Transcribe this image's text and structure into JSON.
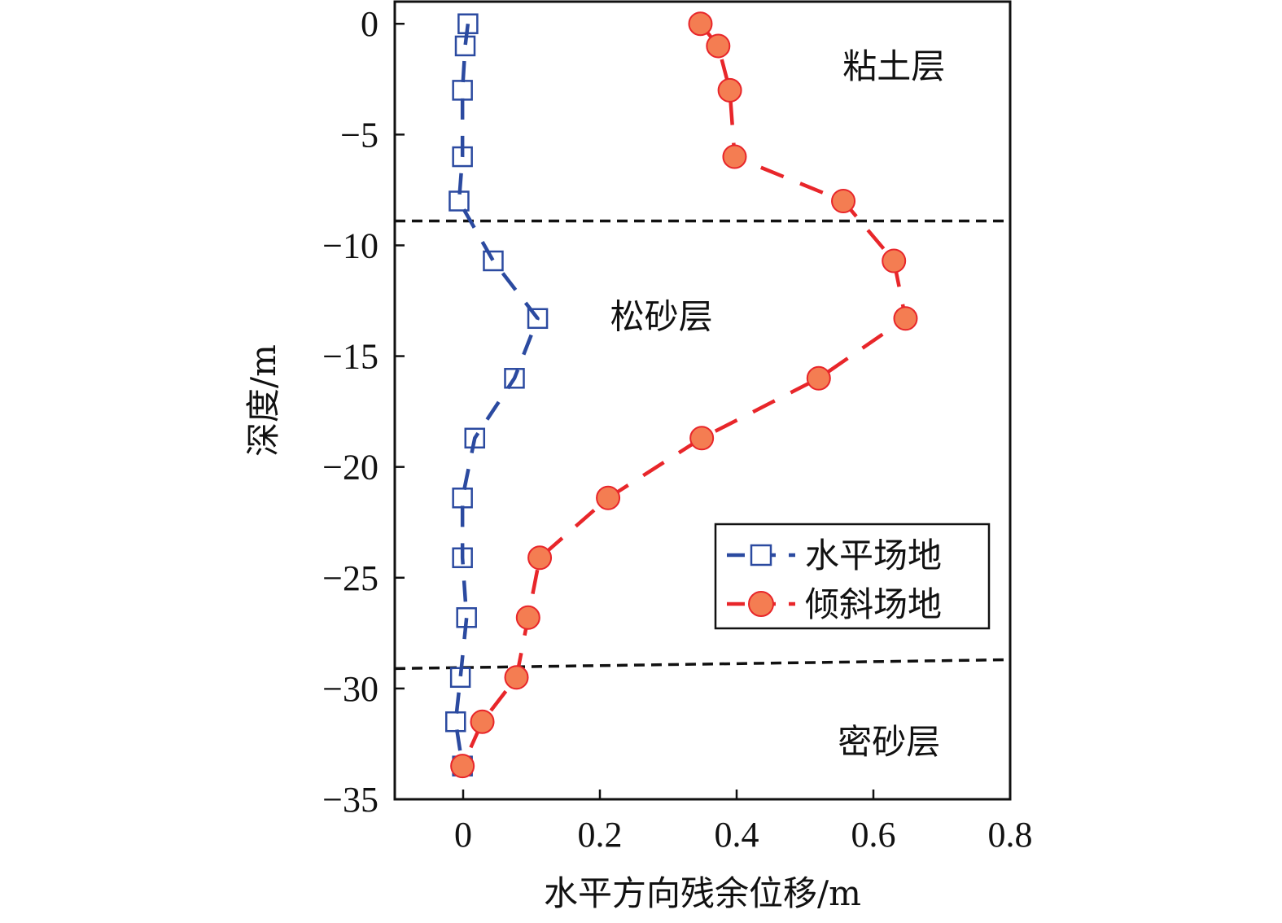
{
  "chart_data": {
    "type": "line",
    "xlabel": "水平方向残余位移/m",
    "ylabel": "深度/m",
    "xlim": [
      -0.1,
      0.8
    ],
    "ylim": [
      -35,
      1
    ],
    "x_ticks": [
      {
        "value": 0,
        "label": "0"
      },
      {
        "value": 0.2,
        "label": "0.2"
      },
      {
        "value": 0.4,
        "label": "0.4"
      },
      {
        "value": 0.6,
        "label": "0.6"
      },
      {
        "value": 0.8,
        "label": "0.8"
      }
    ],
    "y_ticks": [
      {
        "value": 0,
        "label": "0"
      },
      {
        "value": -5,
        "label": "−5"
      },
      {
        "value": -10,
        "label": "−10"
      },
      {
        "value": -15,
        "label": "−15"
      },
      {
        "value": -20,
        "label": "−20"
      },
      {
        "value": -25,
        "label": "−25"
      },
      {
        "value": -30,
        "label": "−30"
      },
      {
        "value": -35,
        "label": "−35"
      }
    ],
    "grid": false,
    "legend_position": "lower-right",
    "series": [
      {
        "name": "水平场地",
        "color": "#2b4aa0",
        "marker": "open-square",
        "line_style": "dashed",
        "points": [
          {
            "x": 0.007,
            "y": 0
          },
          {
            "x": 0.003,
            "y": -1
          },
          {
            "x": -0.001,
            "y": -3
          },
          {
            "x": -0.001,
            "y": -6
          },
          {
            "x": -0.006,
            "y": -8
          },
          {
            "x": 0.044,
            "y": -10.7
          },
          {
            "x": 0.109,
            "y": -13.3
          },
          {
            "x": 0.075,
            "y": -16
          },
          {
            "x": 0.017,
            "y": -18.7
          },
          {
            "x": -0.001,
            "y": -21.4
          },
          {
            "x": -0.001,
            "y": -24.1
          },
          {
            "x": 0.005,
            "y": -26.8
          },
          {
            "x": -0.004,
            "y": -29.5
          },
          {
            "x": -0.011,
            "y": -31.5
          },
          {
            "x": -0.001,
            "y": -33.5
          }
        ]
      },
      {
        "name": "倾斜场地",
        "color": "#e8262a",
        "marker_fill": "#f47d52",
        "marker": "filled-circle",
        "line_style": "dashed",
        "points": [
          {
            "x": 0.347,
            "y": 0
          },
          {
            "x": 0.373,
            "y": -1
          },
          {
            "x": 0.39,
            "y": -3
          },
          {
            "x": 0.397,
            "y": -6
          },
          {
            "x": 0.556,
            "y": -8
          },
          {
            "x": 0.63,
            "y": -10.7
          },
          {
            "x": 0.647,
            "y": -13.3
          },
          {
            "x": 0.52,
            "y": -16
          },
          {
            "x": 0.349,
            "y": -18.7
          },
          {
            "x": 0.212,
            "y": -21.4
          },
          {
            "x": 0.112,
            "y": -24.1
          },
          {
            "x": 0.095,
            "y": -26.8
          },
          {
            "x": 0.078,
            "y": -29.5
          },
          {
            "x": 0.028,
            "y": -31.5
          },
          {
            "x": -0.001,
            "y": -33.5
          }
        ]
      }
    ],
    "reference_lines": [
      {
        "type": "layer-boundary",
        "style": "dashed",
        "color": "#111111",
        "x_from": -0.1,
        "x_to": 0.8,
        "y_from": -8.9,
        "y_to": -8.9
      },
      {
        "type": "layer-boundary",
        "style": "dashed",
        "color": "#111111",
        "x_from": -0.1,
        "x_to": 0.8,
        "y_from": -29.1,
        "y_to": -28.7
      }
    ],
    "annotations": [
      {
        "text": "粘土层",
        "x": 0.63,
        "y": -1.9
      },
      {
        "text": "松砂层",
        "x": 0.29,
        "y": -13.2
      },
      {
        "text": "密砂层",
        "x": 0.623,
        "y": -32.4
      }
    ]
  }
}
